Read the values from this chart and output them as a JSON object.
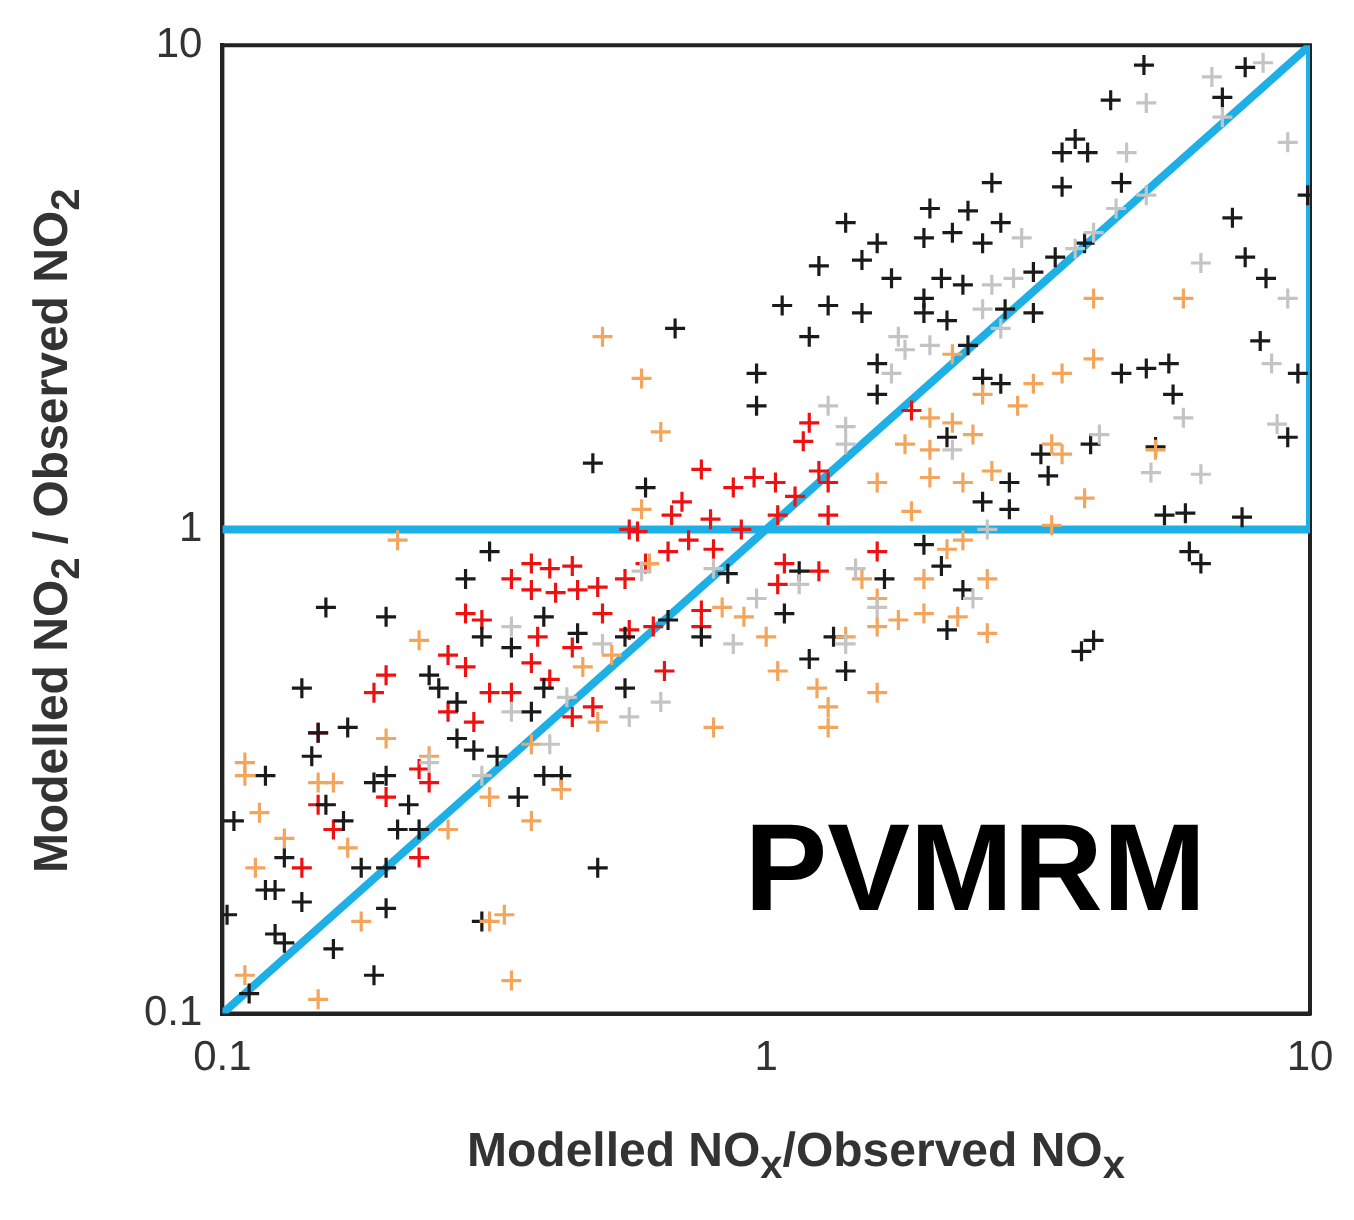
{
  "chart_data": {
    "type": "scatter",
    "xlabel": "Modelled NO$_{x}$/Observed NO$_{x}$",
    "ylabel": "Modelled NO$_{2}$ / Observed NO$_{2}$",
    "annotations": [
      "PVMRM"
    ],
    "log": "xy",
    "grid": false,
    "legend": false,
    "marker": "cross",
    "xlim": [
      0.1,
      10
    ],
    "xticks": [
      0.1,
      1,
      10
    ],
    "ylim": [
      0.1,
      10
    ],
    "yticks": [
      0.1,
      1,
      10
    ],
    "series": [
      {
        "color": "#c4c4c4",
        "x": [
          5.0,
          6.6,
          8.2,
          6.9,
          9.1,
          4.6,
          5.0,
          4.4,
          4.0,
          2.95,
          3.7,
          2.6,
          2.85,
          2.5,
          2.7,
          6.3,
          9.1,
          8.5,
          1.75,
          1.8,
          2.0,
          1.7,
          5.85,
          8.7,
          5.1,
          6.3,
          4.1,
          1.3,
          1.4,
          2.2,
          1.4,
          0.59,
          0.8,
          0.34,
          0.64,
          0.56,
          0.34,
          0.4,
          0.3,
          0.24,
          0.96,
          0.87,
          0.43,
          0.5,
          1.46,
          2.4,
          1.6,
          1.4,
          2.55,
          1.15
        ],
        "values": [
          7.6,
          8.6,
          9.2,
          7.1,
          6.3,
          6.0,
          4.9,
          4.6,
          4.1,
          4.0,
          3.8,
          3.2,
          3.3,
          2.85,
          2.6,
          3.55,
          3.0,
          2.2,
          2.5,
          2.35,
          2.4,
          2.1,
          1.7,
          1.65,
          1.31,
          1.3,
          1.57,
          1.8,
          1.63,
          1.46,
          1.5,
          0.82,
          0.83,
          0.63,
          0.44,
          0.41,
          0.42,
          0.36,
          0.31,
          0.33,
          0.72,
          0.58,
          0.45,
          0.58,
          0.83,
          0.72,
          0.69,
          0.58,
          1.0,
          0.77
        ]
      },
      {
        "color": "#f4a55c",
        "x": [
          0.5,
          0.59,
          0.64,
          0.59,
          4.0,
          5.85,
          2.2,
          4.0,
          3.5,
          3.1,
          2.5,
          2.9,
          2.0,
          2.2,
          1.8,
          2.0,
          2.4,
          3.35,
          3.5,
          2.6,
          2.0,
          1.6,
          2.3,
          3.85,
          1.85,
          5.2,
          2.15,
          2.3,
          2.55,
          1.95,
          1.5,
          1.6,
          1.75,
          1.95,
          1.6,
          2.25,
          2.55,
          1.4,
          1.05,
          1.24,
          1.3,
          1.3,
          1.6,
          3.35,
          0.21,
          0.23,
          0.11,
          0.11,
          0.117,
          0.15,
          0.16,
          0.13,
          0.17,
          0.115,
          0.2,
          0.24,
          0.26,
          0.31,
          0.37,
          0.42,
          0.33,
          0.31,
          0.18,
          0.15,
          0.34,
          0.11,
          0.37,
          0.49,
          0.8,
          0.91,
          1.0,
          0.83,
          0.46,
          0.52,
          0.61
        ],
        "values": [
          2.5,
          2.05,
          1.59,
          1.1,
          3.0,
          3.0,
          2.3,
          2.25,
          2.1,
          2.0,
          1.9,
          1.8,
          1.7,
          1.66,
          1.5,
          1.46,
          1.57,
          1.5,
          1.43,
          1.32,
          1.28,
          1.25,
          1.25,
          1.16,
          1.09,
          1.46,
          0.91,
          0.95,
          0.79,
          0.79,
          0.79,
          0.72,
          0.65,
          0.67,
          0.63,
          0.66,
          0.61,
          0.6,
          0.51,
          0.47,
          0.43,
          0.39,
          0.46,
          1.02,
          0.95,
          0.59,
          0.33,
          0.31,
          0.26,
          0.3,
          0.3,
          0.23,
          0.22,
          0.2,
          0.37,
          0.34,
          0.24,
          0.28,
          0.25,
          0.29,
          0.16,
          0.155,
          0.155,
          0.107,
          0.117,
          0.12,
          0.36,
          0.4,
          0.39,
          0.66,
          0.6,
          0.69,
          0.52,
          0.55,
          0.85
        ]
      },
      {
        "color": "#1a1a1a",
        "x": [
          4.95,
          7.6,
          4.3,
          6.9,
          3.7,
          3.5,
          3.9,
          2.6,
          3.5,
          4.5,
          2.0,
          2.35,
          2.7,
          1.4,
          1.6,
          1.95,
          2.2,
          2.5,
          3.85,
          1.25,
          1.5,
          1.7,
          2.1,
          2.3,
          1.95,
          1.07,
          1.3,
          1.5,
          1.95,
          2.15,
          2.75,
          3.1,
          3.4,
          3.1,
          1.2,
          7.2,
          7.6,
          8.3,
          9.9,
          8.1,
          9.5,
          2.35,
          1.6,
          2.5,
          1.6,
          2.7,
          4.5,
          5.0,
          5.5,
          5.6,
          9.1,
          3.2,
          3.95,
          5.2,
          3.3,
          2.8,
          2.5,
          2.8,
          5.4,
          5.9,
          7.5,
          2.15,
          6.0,
          6.3,
          3.8,
          4.0,
          2.15,
          2.3,
          2.1,
          1.65,
          1.95,
          1.08,
          1.33,
          1.2,
          1.4,
          1.15,
          0.31,
          0.28,
          0.155,
          0.2,
          0.3,
          0.14,
          0.24,
          0.25,
          0.27,
          0.15,
          0.17,
          0.146,
          0.12,
          0.27,
          0.29,
          0.37,
          0.34,
          0.39,
          0.32,
          0.2,
          0.19,
          0.155,
          0.167,
          0.22,
          0.21,
          0.23,
          0.35,
          0.39,
          0.42,
          0.55,
          0.105,
          0.13,
          0.12,
          0.125,
          0.14,
          0.18,
          0.2,
          0.2,
          0.102,
          0.125,
          0.13,
          0.16,
          0.19,
          0.112,
          0.3,
          0.49,
          0.76,
          0.55,
          0.45,
          0.39,
          0.66,
          0.85,
          0.68,
          0.96,
          0.96,
          0.48,
          0.6
        ],
        "values": [
          9.1,
          9,
          7.7,
          7.8,
          6.4,
          6.0,
          6.0,
          5.2,
          5.1,
          5.2,
          4.6,
          4.55,
          4.3,
          4.3,
          3.9,
          4.0,
          4.1,
          3.9,
          3.9,
          3.5,
          3.6,
          3.3,
          3.3,
          3.2,
          3.0,
          2.9,
          2.9,
          2.8,
          2.8,
          2.7,
          2.85,
          3.4,
          3.65,
          2.8,
          2.5,
          4.4,
          3.65,
          3.3,
          4.9,
          2.45,
          2.1,
          2.4,
          2.2,
          2.05,
          1.9,
          2.0,
          2.1,
          2.15,
          2.2,
          1.9,
          1.55,
          1.43,
          1.5,
          1.48,
          1.29,
          1.25,
          1.14,
          1.1,
          1.07,
          1.08,
          1.06,
          1.55,
          0.9,
          0.85,
          0.56,
          0.59,
          0.62,
          0.75,
          0.84,
          0.79,
          0.93,
          0.67,
          0.6,
          0.54,
          0.51,
          0.82,
          0.9,
          0.79,
          0.69,
          0.66,
          0.6,
          0.47,
          0.5,
          0.47,
          0.44,
          0.38,
          0.39,
          0.34,
          0.31,
          0.37,
          0.35,
          0.42,
          0.57,
          0.66,
          0.34,
          0.31,
          0.3,
          0.27,
          0.25,
          0.27,
          0.24,
          0.24,
          0.28,
          0.31,
          0.31,
          0.47,
          0.25,
          0.21,
          0.18,
          0.18,
          0.17,
          0.2,
          0.2,
          0.165,
          0.16,
          0.146,
          0.14,
          0.136,
          0.12,
          0.11,
          0.155,
          0.2,
          0.6,
          0.6,
          0.61,
          0.47,
          0.65,
          0.81,
          2.6,
          2.1,
          1.8,
          1.37,
          1.22
        ]
      },
      {
        "color": "#ee1111",
        "x": [
          0.37,
          0.4,
          0.44,
          0.34,
          0.37,
          0.41,
          0.45,
          0.49,
          0.55,
          0.6,
          0.66,
          0.72,
          0.8,
          0.58,
          0.28,
          0.3,
          0.26,
          0.28,
          0.2,
          0.19,
          0.31,
          0.34,
          0.37,
          0.38,
          0.44,
          0.4,
          0.26,
          0.29,
          0.23,
          0.24,
          0.2,
          0.15,
          0.15,
          0.16,
          0.14,
          0.23,
          0.44,
          0.48,
          0.65,
          0.5,
          0.56,
          0.62,
          0.76,
          0.76,
          0.9,
          0.76,
          0.87,
          0.95,
          0.7,
          0.67,
          0.56,
          0.79,
          1.2,
          1.17,
          1.04,
          1.3,
          1.13,
          1.85,
          1.25,
          1.05,
          1.3,
          1.08,
          1.05,
          1.25,
          1.6
        ],
        "values": [
          0.85,
          0.83,
          0.84,
          0.79,
          0.75,
          0.74,
          0.75,
          0.76,
          0.79,
          0.85,
          0.9,
          0.95,
          0.91,
          0.99,
          0.67,
          0.65,
          0.55,
          0.52,
          0.5,
          0.46,
          0.46,
          0.46,
          0.53,
          0.6,
          0.57,
          0.49,
          0.42,
          0.4,
          0.32,
          0.3,
          0.28,
          0.38,
          0.27,
          0.24,
          0.2,
          0.21,
          0.41,
          0.43,
          0.51,
          0.67,
          0.62,
          0.63,
          0.68,
          0.63,
          1.0,
          1.33,
          1.22,
          1.28,
          1.14,
          1.07,
          1.0,
          1.05,
          1.66,
          1.52,
          1.25,
          1.25,
          1.17,
          1.76,
          1.32,
          1.07,
          1.07,
          0.85,
          0.77,
          0.82,
          0.9
        ]
      },
      {
        "type": "line",
        "marker": "none",
        "color": "#1cb0e6",
        "x": [
          0.1,
          10,
          10,
          0.1
        ],
        "values": [
          0.1,
          10,
          1,
          1
        ]
      }
    ]
  }
}
